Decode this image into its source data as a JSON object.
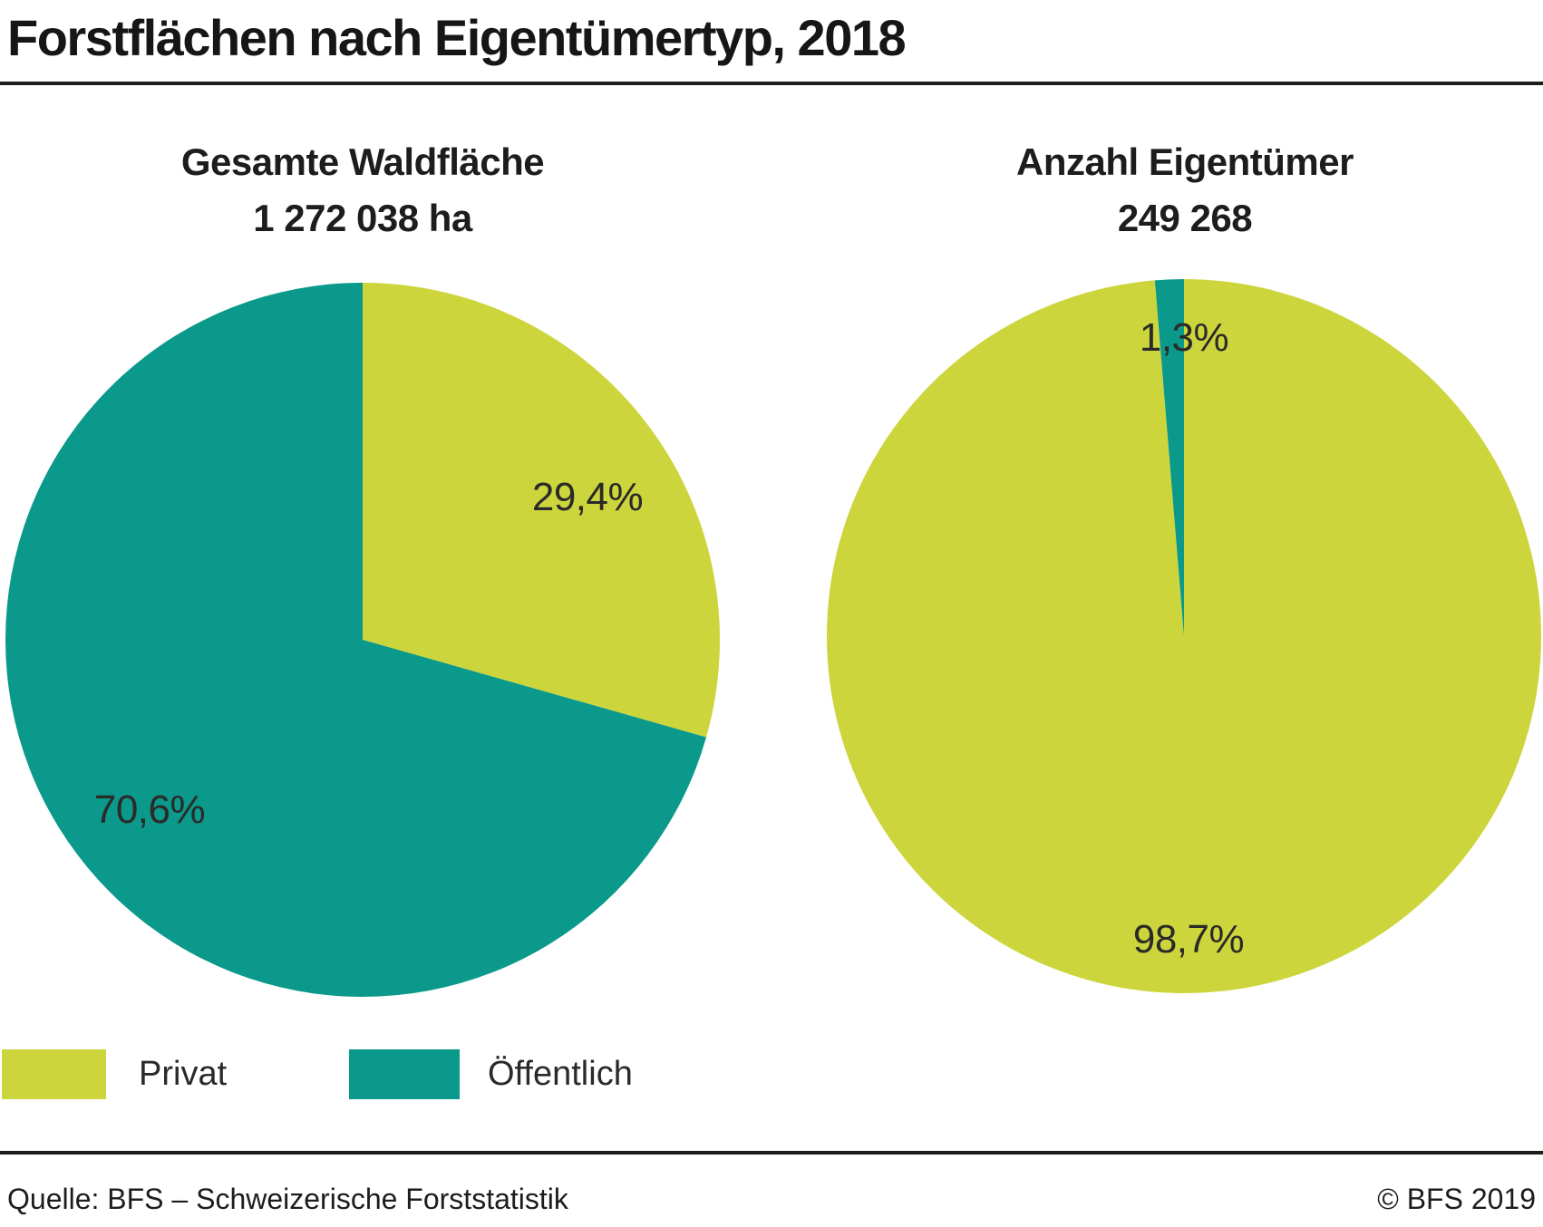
{
  "header": {
    "title": "Forstflächen nach Eigentümertyp, 2018"
  },
  "colors": {
    "privat": "#CDD53C",
    "oeffentlich": "#0A998A",
    "text": "#1d1d1b"
  },
  "chart_data": [
    {
      "type": "pie",
      "title": "Gesamte Waldfläche",
      "subtitle": "1 272 038 ha",
      "categories": [
        "Privat",
        "Öffentlich"
      ],
      "values": [
        29.4,
        70.6
      ],
      "labels": [
        "29,4%",
        "70,6%"
      ],
      "slice_names": [
        "privat",
        "oeffentlich"
      ],
      "colors": [
        "#CDD53C",
        "#0A998A"
      ],
      "start_angle_deg": -90,
      "direction": "clockwise",
      "legend_position": "bottom-left"
    },
    {
      "type": "pie",
      "title": "Anzahl Eigentümer",
      "subtitle": "249 268",
      "categories": [
        "Privat",
        "Öffentlich"
      ],
      "values": [
        98.7,
        1.3
      ],
      "labels": [
        "98,7%",
        "1,3%"
      ],
      "slice_names": [
        "privat",
        "oeffentlich"
      ],
      "colors": [
        "#CDD53C",
        "#0A998A"
      ],
      "start_angle_deg": -90,
      "direction": "clockwise",
      "legend_position": "bottom-left"
    }
  ],
  "legend": {
    "items": [
      {
        "label": "Privat",
        "color": "#CDD53C"
      },
      {
        "label": "Öffentlich",
        "color": "#0A998A"
      }
    ]
  },
  "footer": {
    "source": "Quelle: BFS – Schweizerische Forststatistik",
    "copyright": "© BFS 2019"
  }
}
